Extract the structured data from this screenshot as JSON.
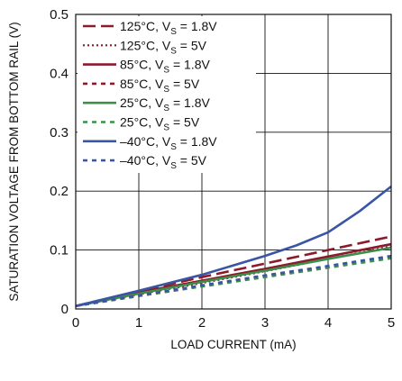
{
  "chart_data": {
    "type": "line",
    "xlabel": "LOAD CURRENT (mA)",
    "ylabel": "SATURATION VOLTAGE FROM BOTTOM RAIL (V)",
    "xlim": [
      0,
      5
    ],
    "ylim": [
      0,
      0.5
    ],
    "xticks": [
      "0",
      "1",
      "2",
      "3",
      "4",
      "5"
    ],
    "yticks": [
      "0",
      "0.1",
      "0.2",
      "0.3",
      "0.4",
      "0.5"
    ],
    "grid": true,
    "legend_position": "top-left",
    "series": [
      {
        "label": "125°C, V",
        "sub": "S",
        "tail": " = 1.8V",
        "color": "#8b1a2b",
        "dash": "long-dash",
        "x": [
          0,
          1,
          2,
          3,
          4,
          5
        ],
        "y": [
          0.005,
          0.03,
          0.054,
          0.077,
          0.1,
          0.123
        ]
      },
      {
        "label": "125°C, V",
        "sub": "S",
        "tail": " = 5V",
        "color": "#8b1a2b",
        "dash": "dotted",
        "x": [
          0,
          1,
          2,
          3,
          4,
          5
        ],
        "y": [
          0.005,
          0.025,
          0.044,
          0.064,
          0.085,
          0.106
        ]
      },
      {
        "label": "85°C, V",
        "sub": "S",
        "tail": " = 1.8V",
        "color": "#8b1a2b",
        "dash": "solid",
        "x": [
          0,
          1,
          2,
          3,
          4,
          5
        ],
        "y": [
          0.005,
          0.028,
          0.048,
          0.068,
          0.089,
          0.11
        ]
      },
      {
        "label": "85°C, V",
        "sub": "S",
        "tail": " = 5V",
        "color": "#8b1a2b",
        "dash": "short-dash",
        "x": [
          0,
          1,
          2,
          3,
          4,
          5
        ],
        "y": [
          0.005,
          0.022,
          0.039,
          0.056,
          0.072,
          0.089
        ]
      },
      {
        "label": "25°C, V",
        "sub": "S",
        "tail": " = 1.8V",
        "color": "#3a8f4a",
        "dash": "solid",
        "x": [
          0,
          1,
          2,
          3,
          4,
          5
        ],
        "y": [
          0.005,
          0.026,
          0.046,
          0.065,
          0.085,
          0.104
        ]
      },
      {
        "label": "25°C, V",
        "sub": "S",
        "tail": " = 5V",
        "color": "#3a8f4a",
        "dash": "short-dash",
        "x": [
          0,
          1,
          2,
          3,
          4,
          5
        ],
        "y": [
          0.005,
          0.022,
          0.038,
          0.054,
          0.07,
          0.086
        ]
      },
      {
        "label": "–40°C, V",
        "sub": "S",
        "tail": " = 1.8V",
        "color": "#3a55a4",
        "dash": "solid",
        "x": [
          0,
          1,
          2,
          3,
          3.5,
          4,
          4.5,
          5
        ],
        "y": [
          0.005,
          0.031,
          0.058,
          0.09,
          0.108,
          0.13,
          0.166,
          0.208
        ]
      },
      {
        "label": "–40°C, V",
        "sub": "S",
        "tail": " = 5V",
        "color": "#3a55a4",
        "dash": "short-dash",
        "x": [
          0,
          1,
          2,
          3,
          4,
          5
        ],
        "y": [
          0.005,
          0.023,
          0.04,
          0.057,
          0.073,
          0.09
        ]
      }
    ]
  }
}
